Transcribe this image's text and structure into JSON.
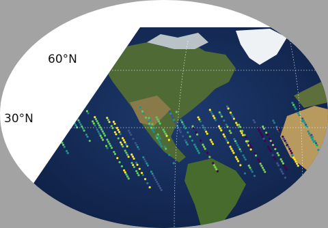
{
  "graticule": {
    "labels": [
      "60°N",
      "30°N"
    ]
  }
}
